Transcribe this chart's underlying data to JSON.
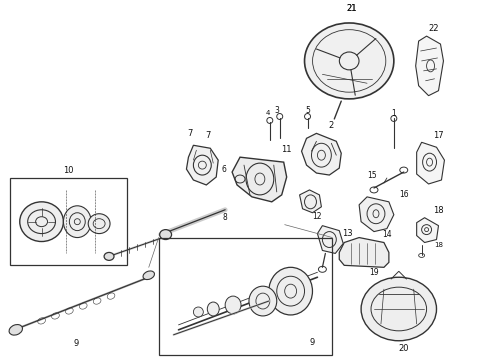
{
  "background_color": "#ffffff",
  "line_color": "#333333",
  "text_color": "#111111",
  "fig_width": 4.9,
  "fig_height": 3.6,
  "dpi": 100,
  "font_size_label": 6.0
}
